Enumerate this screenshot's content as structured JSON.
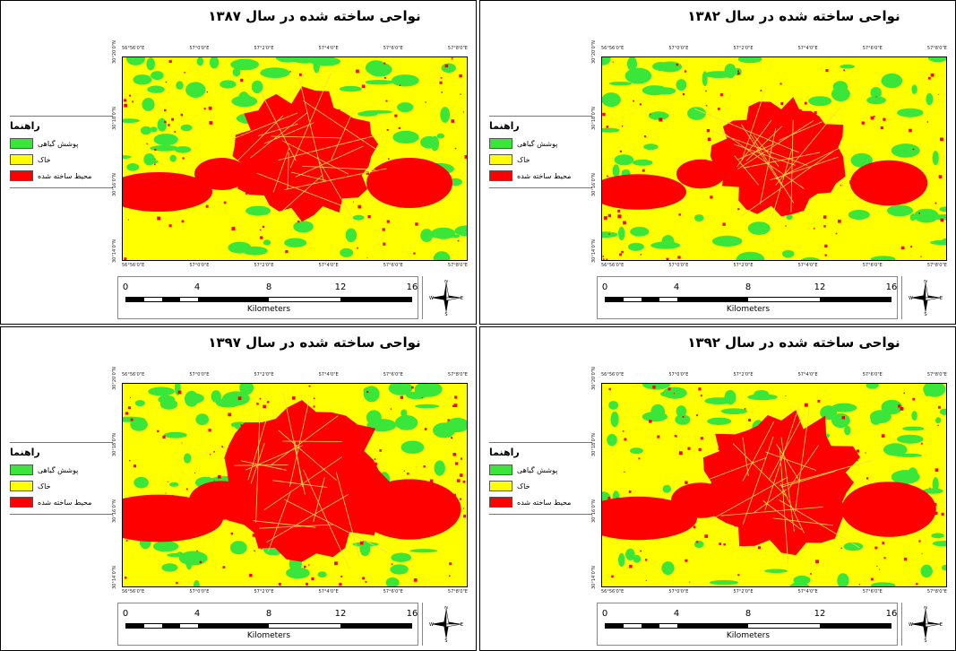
{
  "panels": [
    {
      "id": "tr",
      "title": "نواحی ساخته شده در سال ۱۳۸۷"
    },
    {
      "id": "tl",
      "title": "نواحی ساخته شده در سال ۱۳۸۲"
    },
    {
      "id": "br",
      "title": "نواحی ساخته شده در سال ۱۳۹۷"
    },
    {
      "id": "bl",
      "title": "نواحی ساخته شده در سال ۱۳۹۲"
    }
  ],
  "legend": {
    "title": "راهنما",
    "items": [
      {
        "label": "پوشش گیاهی",
        "color": "#39e639"
      },
      {
        "label": "خاک",
        "color": "#ffff00"
      },
      {
        "label": "محیط ساخته شده",
        "color": "#ff0000"
      }
    ]
  },
  "coords": {
    "top": [
      "56°56'0\"E",
      "57°0'0\"E",
      "57°2'0\"E",
      "57°4'0\"E",
      "57°6'0\"E",
      "57°8'0\"E"
    ],
    "left": [
      "30°20'0\"N",
      "30°18'0\"N",
      "30°16'0\"N",
      "30°14'0\"N"
    ]
  },
  "scale": {
    "ticks": [
      "0",
      "4",
      "8",
      "12",
      "16"
    ],
    "unit": "Kilometers"
  },
  "north": {
    "n": "N",
    "s": "S",
    "e": "E",
    "w": "W"
  },
  "colors": {
    "soil": "#ffff00",
    "veg": "#39e639",
    "built": "#ff0000"
  }
}
